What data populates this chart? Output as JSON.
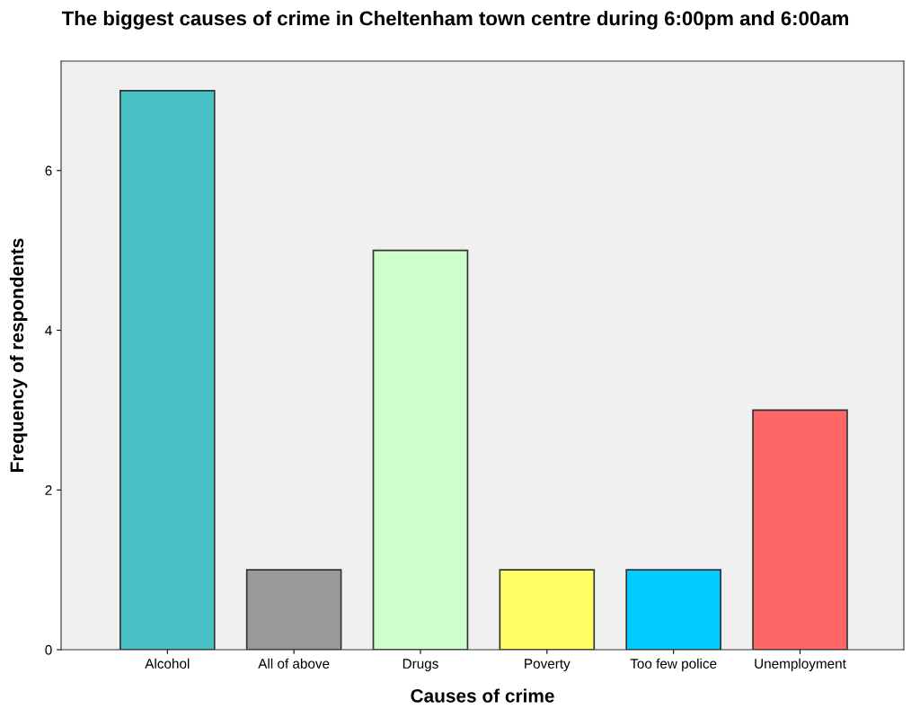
{
  "chart_data": {
    "type": "bar",
    "title": "The biggest causes of crime in Cheltenham town centre during 6:00pm and 6:00am",
    "xlabel": "Causes of crime",
    "ylabel": "Frequency of respondents",
    "categories": [
      "Alcohol",
      "All of above",
      "Drugs",
      "Poverty",
      "Too few police",
      "Unemployment"
    ],
    "values": [
      7,
      1,
      5,
      1,
      1,
      3
    ],
    "colors": [
      "#48c1c5",
      "#999999",
      "#ccffcc",
      "#ffff66",
      "#00ccff",
      "#ff6666"
    ],
    "ylim": [
      0,
      7.37
    ],
    "yticks": [
      0,
      2,
      4,
      6
    ],
    "grid": false,
    "legend": false
  }
}
